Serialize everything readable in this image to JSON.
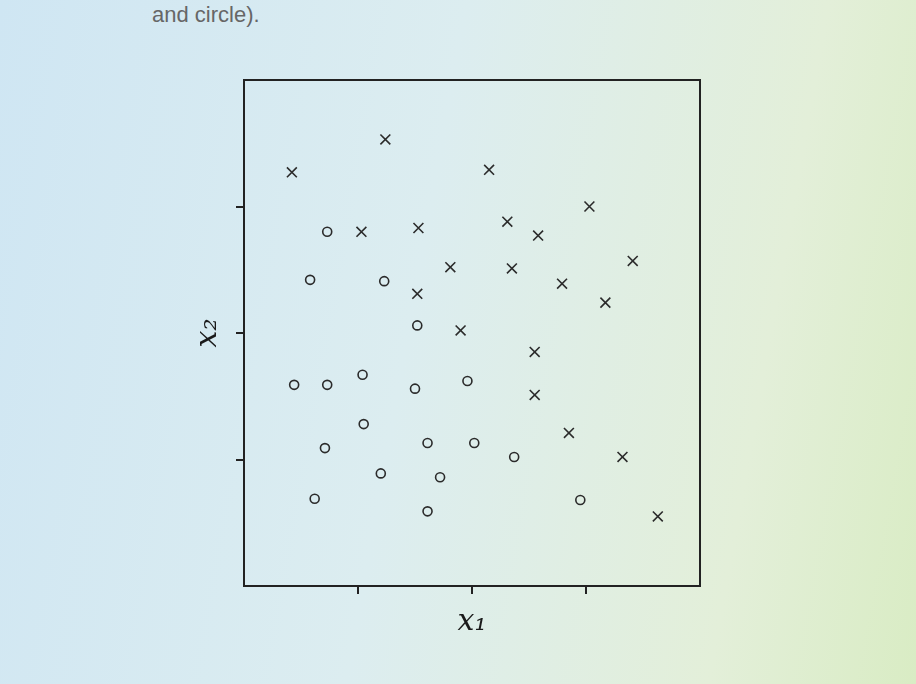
{
  "header": {
    "text": "and circle)."
  },
  "chart_data": {
    "type": "scatter",
    "x_label": "x₁",
    "y_label": "x₂",
    "xlim": [
      0,
      4
    ],
    "ylim": [
      0,
      4
    ],
    "xticks": [
      1,
      2,
      3
    ],
    "yticks": [
      1,
      2,
      3
    ],
    "tick_labels": false,
    "grid": false,
    "series": [
      {
        "marker": "x",
        "color": "#2b2b2b",
        "x": [
          0.42,
          1.24,
          2.15,
          1.03,
          1.53,
          2.31,
          2.58,
          3.03,
          1.81,
          2.35,
          2.79,
          3.41,
          1.52,
          3.17,
          1.9,
          2.55,
          2.55,
          2.85,
          3.32,
          3.63
        ],
        "values": [
          3.27,
          3.53,
          3.29,
          2.8,
          2.83,
          2.88,
          2.77,
          3.0,
          2.52,
          2.51,
          2.39,
          2.57,
          2.31,
          2.24,
          2.02,
          1.85,
          1.51,
          1.21,
          1.02,
          0.55
        ]
      },
      {
        "marker": "o",
        "color": "#2b2b2b",
        "x": [
          0.73,
          0.58,
          1.23,
          1.52,
          0.44,
          0.73,
          1.04,
          1.5,
          1.96,
          1.05,
          0.71,
          1.61,
          2.02,
          2.37,
          1.2,
          1.72,
          0.62,
          1.61,
          2.95
        ],
        "values": [
          2.8,
          2.42,
          2.41,
          2.06,
          1.59,
          1.59,
          1.67,
          1.56,
          1.62,
          1.28,
          1.09,
          1.13,
          1.13,
          1.02,
          0.89,
          0.86,
          0.69,
          0.59,
          0.68
        ]
      }
    ]
  }
}
